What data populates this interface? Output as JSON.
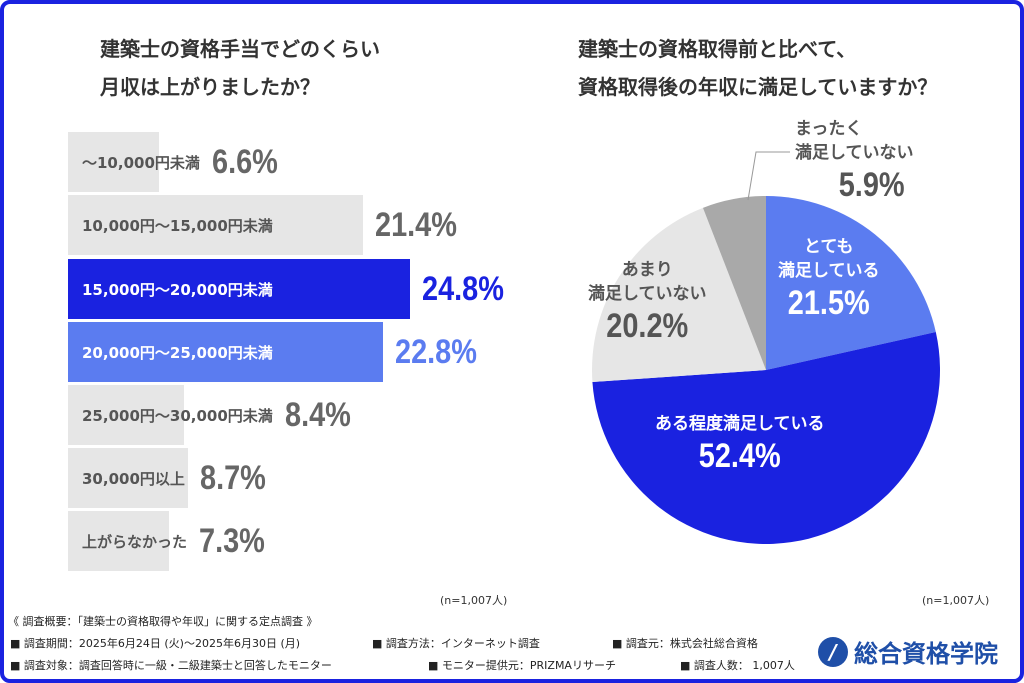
{
  "colors": {
    "highlight": "#1a22e0",
    "secondary": "#5b7cf0",
    "neutral": "#e6e6e6",
    "dark_gray": "#a9a9a9",
    "frame": "#1a22e0"
  },
  "chart_data": [
    {
      "type": "bar",
      "orientation": "horizontal",
      "title": "建築士の資格手当でどのくらい月収は上がりましたか？",
      "title_lines": [
        "建築士の資格手当でどのくらい",
        "月収は上がりましたか？"
      ],
      "categories": [
        "～10,000円未満",
        "10,000円～15,000円未満",
        "15,000円～20,000円未満",
        "20,000円～25,000円未満",
        "25,000円～30,000円未満",
        "30,000円以上",
        "上がらなかった"
      ],
      "values": [
        6.6,
        21.4,
        24.8,
        22.8,
        8.4,
        8.7,
        7.3
      ],
      "value_labels": [
        "6.6%",
        "21.4%",
        "24.8%",
        "22.8%",
        "8.4%",
        "8.7%",
        "7.3%"
      ],
      "unit": "%",
      "note": "(n=1,007人)"
    },
    {
      "type": "pie",
      "title": "建築士の資格取得前と比べて、資格取得後の年収に満足していますか？",
      "title_lines": [
        "建築士の資格取得前と比べて、",
        "資格取得後の年収に満足していますか？"
      ],
      "slices": [
        {
          "label": "とても満足している",
          "label_lines": [
            "とても",
            "満足している"
          ],
          "value": 21.5,
          "value_label": "21.5%"
        },
        {
          "label": "ある程度満足している",
          "label_lines": [
            "ある程度満足している"
          ],
          "value": 52.4,
          "value_label": "52.4%"
        },
        {
          "label": "あまり満足していない",
          "label_lines": [
            "あまり",
            "満足していない"
          ],
          "value": 20.2,
          "value_label": "20.2%"
        },
        {
          "label": "まったく満足していない",
          "label_lines": [
            "まったく",
            "満足していない"
          ],
          "value": 5.9,
          "value_label": "5.9%"
        }
      ],
      "unit": "%",
      "note": "(n=1,007人)"
    }
  ],
  "footer": {
    "heading": "《 調査概要：「建築士の資格取得や年収」に関する定点調査 》",
    "items": [
      "■ 調査期間：2025年6月24日 (火)～2025年6月30日 (月)",
      "■ 調査方法：インターネット調査",
      "■ 調査元：株式会社総合資格",
      "■ 調査対象：調査回答時に一級・二級建築士と回答したモニター",
      "■ モニター提供元：PRIZMAリサーチ",
      "■ 調査人数： 1,007人"
    ]
  },
  "logo": {
    "text": "総合資格学院",
    "icon": "sogo-shikaku-logo-icon"
  }
}
